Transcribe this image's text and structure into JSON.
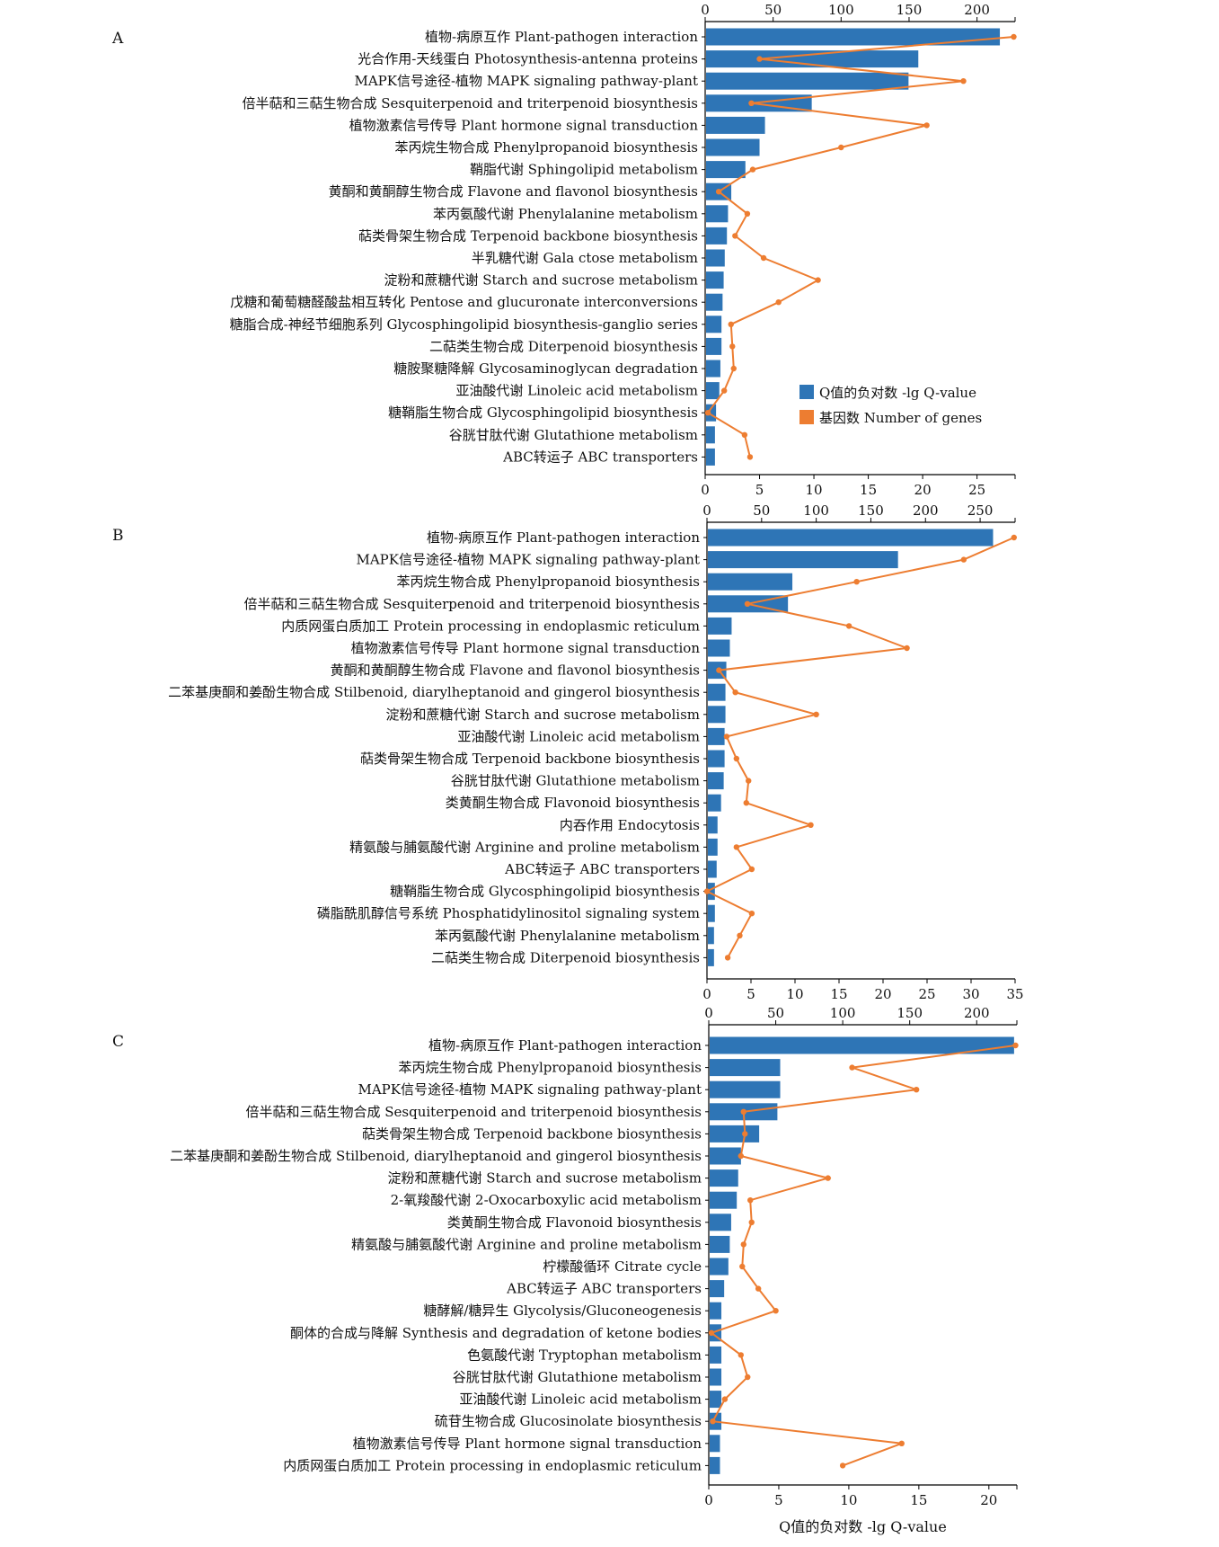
{
  "colors": {
    "bar": "#2e75b6",
    "line": "#ed7d31",
    "axis": "#000000"
  },
  "legend": {
    "bar_label": "Q值的负对数 -lg Q-value",
    "line_label": "基因数 Number of genes",
    "placement": "right, inside panel A"
  },
  "chart_data": [
    {
      "type": "bar",
      "panel": "A",
      "bottom_axis_xlim": [
        0,
        28.5
      ],
      "bottom_axis_ticks": [
        0,
        5,
        10,
        15,
        20,
        25
      ],
      "top_axis_xlim": [
        0,
        228
      ],
      "top_axis_ticks": [
        0,
        50,
        100,
        150,
        200
      ],
      "xlabel": "",
      "categories": [
        "植物-病原互作 Plant-pathogen interaction",
        "光合作用-天线蛋白 Photosynthesis-antenna proteins",
        "MAPK信号途径-植物 MAPK signaling pathway-plant",
        "倍半萜和三萜生物合成 Sesquiterpenoid and triterpenoid biosynthesis",
        "植物激素信号传导 Plant hormone signal transduction",
        "苯丙烷生物合成 Phenylpropanoid biosynthesis",
        "鞘脂代谢 Sphingolipid metabolism",
        "黄酮和黄酮醇生物合成 Flavone and flavonol biosynthesis",
        "苯丙氨酸代谢 Phenylalanine metabolism",
        "萜类骨架生物合成 Terpenoid backbone biosynthesis",
        "半乳糖代谢 Gala ctose metabolism",
        "淀粉和蔗糖代谢 Starch and sucrose metabolism",
        "戊糖和葡萄糖醛酸盐相互转化 Pentose and glucuronate interconversions",
        "糖脂合成-神经节细胞系列 Glycosphingolipid biosynthesis-ganglio series",
        "二萜类生物合成 Diterpenoid biosynthesis",
        "糖胺聚糖降解 Glycosaminoglycan degradation",
        "亚油酸代谢 Linoleic acid metabolism",
        "糖鞘脂生物合成 Glycosphingolipid biosynthesis",
        "谷胱甘肽代谢 Glutathione metabolism",
        "ABC转运子 ABC transporters"
      ],
      "series": [
        {
          "name": "Q值的负对数 -lg Q-value",
          "axis": "bottom",
          "values": [
            27.1,
            19.6,
            18.7,
            9.8,
            5.5,
            5.0,
            3.7,
            2.4,
            2.1,
            2.0,
            1.8,
            1.7,
            1.6,
            1.5,
            1.5,
            1.4,
            1.3,
            1.0,
            0.9,
            0.9
          ]
        },
        {
          "name": "基因数 Number of genes",
          "axis": "top",
          "values": [
            227,
            40,
            190,
            34,
            163,
            100,
            35,
            10,
            31,
            22,
            43,
            83,
            54,
            19,
            20,
            21,
            14,
            2,
            29,
            33
          ]
        }
      ]
    },
    {
      "type": "bar",
      "panel": "B",
      "bottom_axis_xlim": [
        0,
        35
      ],
      "bottom_axis_ticks": [
        0,
        5,
        10,
        15,
        20,
        25,
        30,
        35
      ],
      "top_axis_xlim": [
        0,
        282
      ],
      "top_axis_ticks": [
        0,
        50,
        100,
        150,
        200,
        250
      ],
      "xlabel": "",
      "categories": [
        "植物-病原互作 Plant-pathogen interaction",
        "MAPK信号途径-植物 MAPK signaling pathway-plant",
        "苯丙烷生物合成 Phenylpropanoid biosynthesis",
        "倍半萜和三萜生物合成 Sesquiterpenoid and triterpenoid biosynthesis",
        "内质网蛋白质加工 Protein processing in endoplasmic reticulum",
        "植物激素信号传导 Plant hormone signal transduction",
        "黄酮和黄酮醇生物合成 Flavone and flavonol biosynthesis",
        "二苯基庚酮和姜酚生物合成 Stilbenoid, diarylheptanoid and gingerol biosynthesis",
        "淀粉和蔗糖代谢 Starch and sucrose metabolism",
        "亚油酸代谢 Linoleic acid metabolism",
        "萜类骨架生物合成 Terpenoid backbone biosynthesis",
        "谷胱甘肽代谢 Glutathione metabolism",
        "类黄酮生物合成 Flavonoid biosynthesis",
        "内吞作用 Endocytosis",
        "精氨酸与脯氨酸代谢 Arginine and proline metabolism",
        "ABC转运子 ABC transporters",
        "糖鞘脂生物合成 Glycosphingolipid biosynthesis",
        "磷脂酰肌醇信号系统 Phosphatidylinositol signaling system",
        "苯丙氨酸代谢 Phenylalanine metabolism",
        "二萜类生物合成 Diterpenoid biosynthesis"
      ],
      "series": [
        {
          "name": "Q值的负对数 -lg Q-value",
          "axis": "bottom",
          "values": [
            32.5,
            21.7,
            9.7,
            9.2,
            2.8,
            2.6,
            2.2,
            2.1,
            2.1,
            2.0,
            2.0,
            1.9,
            1.6,
            1.2,
            1.2,
            1.1,
            0.9,
            0.9,
            0.8,
            0.8
          ]
        },
        {
          "name": "基因数 Number of genes",
          "axis": "top",
          "values": [
            281,
            235,
            137,
            37,
            130,
            183,
            11,
            26,
            100,
            18,
            27,
            38,
            36,
            95,
            27,
            41,
            0,
            41,
            30,
            19
          ]
        }
      ]
    },
    {
      "type": "bar",
      "panel": "C",
      "bottom_axis_xlim": [
        0,
        22
      ],
      "bottom_axis_ticks": [
        0,
        5,
        10,
        15,
        20
      ],
      "top_axis_xlim": [
        0,
        230
      ],
      "top_axis_ticks": [
        0,
        50,
        100,
        150,
        200
      ],
      "xlabel": "Q值的负对数 -lg Q-value",
      "categories": [
        "植物-病原互作 Plant-pathogen interaction",
        "苯丙烷生物合成 Phenylpropanoid biosynthesis",
        "MAPK信号途径-植物 MAPK signaling pathway-plant",
        "倍半萜和三萜生物合成 Sesquiterpenoid and triterpenoid biosynthesis",
        "萜类骨架生物合成 Terpenoid backbone biosynthesis",
        "二苯基庚酮和姜酚生物合成 Stilbenoid, diarylheptanoid and gingerol biosynthesis",
        "淀粉和蔗糖代谢 Starch and sucrose metabolism",
        "2-氧羧酸代谢 2-Oxocarboxylic acid metabolism",
        "类黄酮生物合成 Flavonoid biosynthesis",
        "精氨酸与脯氨酸代谢 Arginine and proline metabolism",
        "柠檬酸循环 Citrate cycle",
        "ABC转运子 ABC transporters",
        "糖酵解/糖异生 Glycolysis/Gluconeogenesis",
        "酮体的合成与降解 Synthesis and degradation of ketone bodies",
        "色氨酸代谢 Tryptophan metabolism",
        "谷胱甘肽代谢 Glutathione metabolism",
        "亚油酸代谢 Linoleic acid metabolism",
        "硫苷生物合成 Glucosinolate biosynthesis",
        "植物激素信号传导 Plant hormone signal transduction",
        "内质网蛋白质加工 Protein processing in endoplasmic reticulum"
      ],
      "series": [
        {
          "name": "Q值的负对数 -lg Q-value",
          "axis": "bottom",
          "values": [
            21.8,
            5.1,
            5.1,
            4.9,
            3.6,
            2.3,
            2.1,
            2.0,
            1.6,
            1.5,
            1.4,
            1.1,
            0.9,
            0.9,
            0.9,
            0.9,
            0.9,
            0.9,
            0.8,
            0.8
          ]
        },
        {
          "name": "基因数 Number of genes",
          "axis": "top",
          "values": [
            229,
            107,
            155,
            26,
            27,
            24,
            89,
            31,
            32,
            26,
            25,
            37,
            50,
            2,
            24,
            29,
            12,
            3,
            144,
            100
          ]
        }
      ]
    }
  ]
}
